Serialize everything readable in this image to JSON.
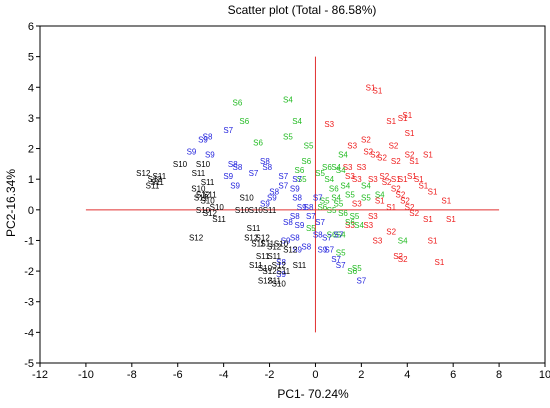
{
  "chart_data": {
    "type": "scatter",
    "title": "Scatter plot (Total - 86.58%)",
    "xlabel": "PC1- 70.24%",
    "ylabel": "PC2-16.34%",
    "xlim": [
      -12,
      10
    ],
    "ylim": [
      -5,
      6
    ],
    "xticks": [
      -12,
      -10,
      -8,
      -6,
      -4,
      -2,
      0,
      2,
      4,
      6,
      8,
      10
    ],
    "yticks": [
      -5,
      -4,
      -3,
      -2,
      -1,
      0,
      1,
      2,
      3,
      4,
      5,
      6
    ],
    "tick_labels_x": [
      "-12",
      "-10",
      "-8",
      "-6",
      "-4",
      "-2",
      "0",
      "2",
      "4",
      "6",
      "8",
      "10"
    ],
    "tick_labels_y": [
      "-5",
      "-4",
      "-3",
      "-2",
      "-1",
      "0",
      "1",
      "2",
      "3",
      "4",
      "5",
      "6"
    ],
    "reference_lines": {
      "horizontal": {
        "y": 0,
        "x_range": [
          -10,
          8
        ],
        "color": "#e03030"
      },
      "vertical": {
        "x": 0,
        "y_range": [
          -4,
          5
        ],
        "color": "#e03030"
      }
    },
    "grid": false,
    "colors": {
      "red": "#ee1c1c",
      "green": "#22bb22",
      "blue": "#2424dd",
      "black": "#000000"
    },
    "groups": [
      {
        "color": "red",
        "points": [
          {
            "label": "S1",
            "x": 2.4,
            "y": 4.0
          },
          {
            "label": "S1",
            "x": 2.7,
            "y": 3.9
          },
          {
            "label": "S1",
            "x": 3.8,
            "y": 3.0
          },
          {
            "label": "S1",
            "x": 4.0,
            "y": 3.1
          },
          {
            "label": "S1",
            "x": 3.3,
            "y": 2.9
          },
          {
            "label": "S1",
            "x": 4.1,
            "y": 2.5
          },
          {
            "label": "S3",
            "x": 0.6,
            "y": 2.8
          },
          {
            "label": "S2",
            "x": 2.2,
            "y": 2.3
          },
          {
            "label": "S3",
            "x": 1.6,
            "y": 2.1
          },
          {
            "label": "S2",
            "x": 3.4,
            "y": 2.1
          },
          {
            "label": "S2",
            "x": 2.3,
            "y": 1.9
          },
          {
            "label": "S2",
            "x": 3.5,
            "y": 1.6
          },
          {
            "label": "S3",
            "x": 2.0,
            "y": 1.4
          },
          {
            "label": "S2",
            "x": 2.6,
            "y": 1.8
          },
          {
            "label": "S2",
            "x": 2.9,
            "y": 1.7
          },
          {
            "label": "S2",
            "x": 4.1,
            "y": 1.8
          },
          {
            "label": "S1",
            "x": 4.3,
            "y": 1.6
          },
          {
            "label": "S1",
            "x": 4.9,
            "y": 1.8
          },
          {
            "label": "S3",
            "x": 1.4,
            "y": 1.4
          },
          {
            "label": "S1",
            "x": 3.5,
            "y": 1.0
          },
          {
            "label": "S3",
            "x": 1.5,
            "y": 1.1
          },
          {
            "label": "S3",
            "x": 1.8,
            "y": 1.0
          },
          {
            "label": "S3",
            "x": 2.5,
            "y": 1.0
          },
          {
            "label": "S2",
            "x": 3.0,
            "y": 1.1
          },
          {
            "label": "S2",
            "x": 3.1,
            "y": 0.9
          },
          {
            "label": "S2",
            "x": 3.5,
            "y": 0.7
          },
          {
            "label": "S1",
            "x": 3.8,
            "y": 1.0
          },
          {
            "label": "S1",
            "x": 4.2,
            "y": 1.1
          },
          {
            "label": "S1",
            "x": 4.5,
            "y": 1.0
          },
          {
            "label": "S1",
            "x": 4.7,
            "y": 0.8
          },
          {
            "label": "S2",
            "x": 3.7,
            "y": 0.5
          },
          {
            "label": "S2",
            "x": 3.9,
            "y": 0.3
          },
          {
            "label": "S1",
            "x": 5.1,
            "y": 0.6
          },
          {
            "label": "S1",
            "x": 2.8,
            "y": 0.3
          },
          {
            "label": "S3",
            "x": 1.8,
            "y": 0.2
          },
          {
            "label": "S1",
            "x": 3.3,
            "y": 0.1
          },
          {
            "label": "S2",
            "x": 4.1,
            "y": 0.1
          },
          {
            "label": "S1",
            "x": 5.7,
            "y": 0.3
          },
          {
            "label": "S3",
            "x": 2.5,
            "y": -0.2
          },
          {
            "label": "S2",
            "x": 4.3,
            "y": -0.1
          },
          {
            "label": "S1",
            "x": 4.9,
            "y": -0.3
          },
          {
            "label": "S1",
            "x": 5.9,
            "y": -0.3
          },
          {
            "label": "S3",
            "x": 1.5,
            "y": -0.5
          },
          {
            "label": "S3",
            "x": 2.3,
            "y": -0.5
          },
          {
            "label": "S2",
            "x": 3.3,
            "y": -0.7
          },
          {
            "label": "S3",
            "x": 2.7,
            "y": -1.0
          },
          {
            "label": "S1",
            "x": 5.1,
            "y": -1.0
          },
          {
            "label": "S2",
            "x": 3.6,
            "y": -1.5
          },
          {
            "label": "S2",
            "x": 3.8,
            "y": -1.6
          },
          {
            "label": "S1",
            "x": 5.4,
            "y": -1.7
          }
        ]
      },
      {
        "color": "green",
        "points": [
          {
            "label": "S6",
            "x": -3.4,
            "y": 3.5
          },
          {
            "label": "S4",
            "x": -1.2,
            "y": 3.6
          },
          {
            "label": "S4",
            "x": -0.8,
            "y": 2.9
          },
          {
            "label": "S6",
            "x": -3.1,
            "y": 2.9
          },
          {
            "label": "S5",
            "x": -1.2,
            "y": 2.4
          },
          {
            "label": "S6",
            "x": -2.5,
            "y": 2.2
          },
          {
            "label": "S5",
            "x": -0.3,
            "y": 2.1
          },
          {
            "label": "S4",
            "x": 1.2,
            "y": 1.8
          },
          {
            "label": "S6",
            "x": -0.7,
            "y": 1.3
          },
          {
            "label": "S6",
            "x": -0.4,
            "y": 1.6
          },
          {
            "label": "S6",
            "x": 0.5,
            "y": 1.4
          },
          {
            "label": "S4",
            "x": 0.9,
            "y": 1.4
          },
          {
            "label": "S4",
            "x": 1.1,
            "y": 1.3
          },
          {
            "label": "S5",
            "x": -0.6,
            "y": 1.0
          },
          {
            "label": "S5",
            "x": 0.2,
            "y": 1.2
          },
          {
            "label": "S4",
            "x": 0.6,
            "y": 1.0
          },
          {
            "label": "S4",
            "x": 1.3,
            "y": 0.8
          },
          {
            "label": "S6",
            "x": 0.8,
            "y": 0.7
          },
          {
            "label": "S4",
            "x": 2.2,
            "y": 0.8
          },
          {
            "label": "S4",
            "x": 2.8,
            "y": 0.5
          },
          {
            "label": "S5",
            "x": 2.2,
            "y": 0.4
          },
          {
            "label": "S5",
            "x": 1.5,
            "y": 0.5
          },
          {
            "label": "S5",
            "x": 0.4,
            "y": 0.3
          },
          {
            "label": "S4",
            "x": 0.9,
            "y": 0.4
          },
          {
            "label": "S6",
            "x": 0.3,
            "y": 0.1
          },
          {
            "label": "S5",
            "x": 0.7,
            "y": 0.0
          },
          {
            "label": "S5",
            "x": 1.0,
            "y": 0.2
          },
          {
            "label": "S6",
            "x": 1.2,
            "y": -0.1
          },
          {
            "label": "S5",
            "x": 1.7,
            "y": -0.2
          },
          {
            "label": "S6",
            "x": 1.5,
            "y": -0.4
          },
          {
            "label": "S4",
            "x": 1.9,
            "y": -0.5
          },
          {
            "label": "S4",
            "x": 1.1,
            "y": -0.8
          },
          {
            "label": "S6",
            "x": 0.7,
            "y": -0.8
          },
          {
            "label": "S5",
            "x": -0.2,
            "y": -0.6
          },
          {
            "label": "S4",
            "x": 3.8,
            "y": -1.0
          },
          {
            "label": "S5",
            "x": 1.8,
            "y": -1.9
          },
          {
            "label": "S6",
            "x": 1.6,
            "y": -2.0
          },
          {
            "label": "S5",
            "x": 1.1,
            "y": -1.4
          }
        ]
      },
      {
        "color": "blue",
        "points": [
          {
            "label": "S9",
            "x": -4.9,
            "y": 2.3
          },
          {
            "label": "S8",
            "x": -4.7,
            "y": 2.4
          },
          {
            "label": "S7",
            "x": -3.8,
            "y": 2.6
          },
          {
            "label": "S9",
            "x": -5.4,
            "y": 1.9
          },
          {
            "label": "S9",
            "x": -4.6,
            "y": 1.8
          },
          {
            "label": "S8",
            "x": -3.6,
            "y": 1.5
          },
          {
            "label": "S8",
            "x": -2.2,
            "y": 1.6
          },
          {
            "label": "S8",
            "x": -3.4,
            "y": 1.4
          },
          {
            "label": "S9",
            "x": -3.8,
            "y": 1.1
          },
          {
            "label": "S7",
            "x": -2.7,
            "y": 1.2
          },
          {
            "label": "S8",
            "x": -2.1,
            "y": 1.4
          },
          {
            "label": "S7",
            "x": -1.4,
            "y": 1.1
          },
          {
            "label": "S9",
            "x": -3.5,
            "y": 0.8
          },
          {
            "label": "S7",
            "x": -0.8,
            "y": 1.0
          },
          {
            "label": "S8",
            "x": -1.8,
            "y": 0.6
          },
          {
            "label": "S7",
            "x": -1.4,
            "y": 0.8
          },
          {
            "label": "S9",
            "x": -0.9,
            "y": 0.7
          },
          {
            "label": "S9",
            "x": -1.9,
            "y": 0.4
          },
          {
            "label": "S7",
            "x": 0.1,
            "y": 0.4
          },
          {
            "label": "S8",
            "x": -0.8,
            "y": 0.4
          },
          {
            "label": "S9",
            "x": -2.2,
            "y": 0.2
          },
          {
            "label": "S8",
            "x": -0.3,
            "y": 0.1
          },
          {
            "label": "S9",
            "x": -0.6,
            "y": 0.1
          },
          {
            "label": "S8",
            "x": -0.9,
            "y": -0.2
          },
          {
            "label": "S7",
            "x": -0.2,
            "y": -0.2
          },
          {
            "label": "S8",
            "x": -1.2,
            "y": -0.4
          },
          {
            "label": "S9",
            "x": -0.7,
            "y": -0.5
          },
          {
            "label": "S7",
            "x": 0.2,
            "y": -0.4
          },
          {
            "label": "S8",
            "x": -0.9,
            "y": -0.9
          },
          {
            "label": "S8",
            "x": 0.1,
            "y": -0.8
          },
          {
            "label": "S7",
            "x": 0.5,
            "y": -0.9
          },
          {
            "label": "S7",
            "x": 1.0,
            "y": -0.8
          },
          {
            "label": "S9",
            "x": -1.3,
            "y": -1.0
          },
          {
            "label": "S8",
            "x": -0.4,
            "y": -1.2
          },
          {
            "label": "S9",
            "x": -0.8,
            "y": -1.3
          },
          {
            "label": "S9",
            "x": 0.3,
            "y": -1.3
          },
          {
            "label": "S7",
            "x": 0.6,
            "y": -1.3
          },
          {
            "label": "S8",
            "x": -1.5,
            "y": -1.7
          },
          {
            "label": "S7",
            "x": 0.9,
            "y": -1.6
          },
          {
            "label": "S9",
            "x": -1.5,
            "y": -2.1
          },
          {
            "label": "S7",
            "x": 1.1,
            "y": -1.8
          },
          {
            "label": "S7",
            "x": 2.0,
            "y": -2.3
          }
        ]
      },
      {
        "color": "black",
        "points": [
          {
            "label": "S12",
            "x": -7.5,
            "y": 1.2
          },
          {
            "label": "S10",
            "x": -5.9,
            "y": 1.5
          },
          {
            "label": "S11",
            "x": -6.8,
            "y": 1.1
          },
          {
            "label": "S11",
            "x": -6.9,
            "y": 0.9
          },
          {
            "label": "S11",
            "x": -7.1,
            "y": 0.8
          },
          {
            "label": "S12",
            "x": -7.0,
            "y": 1.0
          },
          {
            "label": "S11",
            "x": -5.1,
            "y": 1.2
          },
          {
            "label": "S10",
            "x": -4.9,
            "y": 1.5
          },
          {
            "label": "S11",
            "x": -4.7,
            "y": 0.9
          },
          {
            "label": "S10",
            "x": -5.1,
            "y": 0.7
          },
          {
            "label": "S11",
            "x": -4.6,
            "y": 0.5
          },
          {
            "label": "S12",
            "x": -4.9,
            "y": 0.5
          },
          {
            "label": "S10",
            "x": -4.7,
            "y": 0.3
          },
          {
            "label": "S10",
            "x": -4.3,
            "y": 0.1
          },
          {
            "label": "S11",
            "x": -5.0,
            "y": 0.4
          },
          {
            "label": "S10",
            "x": -4.9,
            "y": 0.0
          },
          {
            "label": "S12",
            "x": -4.6,
            "y": -0.1
          },
          {
            "label": "S10",
            "x": -3.0,
            "y": 0.4
          },
          {
            "label": "S11",
            "x": -4.2,
            "y": -0.3
          },
          {
            "label": "S10",
            "x": -3.2,
            "y": 0.0
          },
          {
            "label": "S10",
            "x": -2.6,
            "y": 0.0
          },
          {
            "label": "S11",
            "x": -2.0,
            "y": 0.0
          },
          {
            "label": "S12",
            "x": -5.2,
            "y": -0.9
          },
          {
            "label": "S11",
            "x": -2.7,
            "y": -0.6
          },
          {
            "label": "S12",
            "x": -2.8,
            "y": -0.9
          },
          {
            "label": "S11",
            "x": -2.5,
            "y": -1.1
          },
          {
            "label": "S12",
            "x": -2.3,
            "y": -0.9
          },
          {
            "label": "S11",
            "x": -2.1,
            "y": -1.1
          },
          {
            "label": "S12",
            "x": -1.8,
            "y": -1.2
          },
          {
            "label": "S10",
            "x": -1.5,
            "y": -1.1
          },
          {
            "label": "S11",
            "x": -1.8,
            "y": -1.5
          },
          {
            "label": "S12",
            "x": -1.6,
            "y": -1.8
          },
          {
            "label": "S10",
            "x": -2.2,
            "y": -1.9
          },
          {
            "label": "S11",
            "x": -2.6,
            "y": -1.8
          },
          {
            "label": "S12",
            "x": -2.0,
            "y": -2.0
          },
          {
            "label": "S11",
            "x": -1.4,
            "y": -2.0
          },
          {
            "label": "S12",
            "x": -2.2,
            "y": -2.3
          },
          {
            "label": "S11",
            "x": -1.8,
            "y": -2.3
          },
          {
            "label": "S10",
            "x": -1.6,
            "y": -2.4
          },
          {
            "label": "S11",
            "x": -0.7,
            "y": -1.8
          },
          {
            "label": "S11",
            "x": -2.3,
            "y": -1.5
          },
          {
            "label": "S12",
            "x": -1.1,
            "y": -1.3
          }
        ]
      }
    ]
  }
}
